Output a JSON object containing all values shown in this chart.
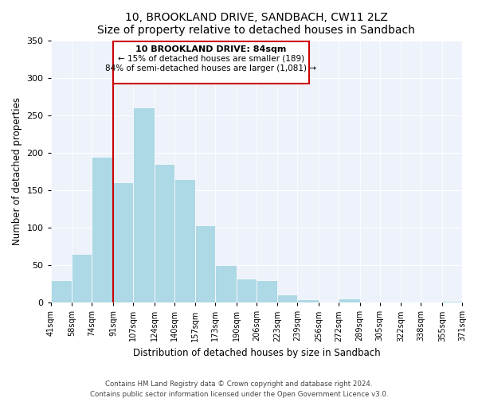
{
  "title": "10, BROOKLAND DRIVE, SANDBACH, CW11 2LZ",
  "subtitle": "Size of property relative to detached houses in Sandbach",
  "xlabel": "Distribution of detached houses by size in Sandbach",
  "ylabel": "Number of detached properties",
  "bar_color": "#add8e6",
  "highlight_color": "#cc0000",
  "bins": [
    41,
    58,
    74,
    91,
    107,
    124,
    140,
    157,
    173,
    190,
    206,
    223,
    239,
    256,
    272,
    289,
    305,
    322,
    338,
    355,
    371
  ],
  "counts": [
    30,
    65,
    195,
    160,
    260,
    185,
    165,
    103,
    50,
    32,
    30,
    11,
    4,
    0,
    5,
    0,
    0,
    1,
    0,
    2
  ],
  "tick_labels": [
    "41sqm",
    "58sqm",
    "74sqm",
    "91sqm",
    "107sqm",
    "124sqm",
    "140sqm",
    "157sqm",
    "173sqm",
    "190sqm",
    "206sqm",
    "223sqm",
    "239sqm",
    "256sqm",
    "272sqm",
    "289sqm",
    "305sqm",
    "322sqm",
    "338sqm",
    "355sqm",
    "371sqm"
  ],
  "ylim": [
    0,
    350
  ],
  "yticks": [
    0,
    50,
    100,
    150,
    200,
    250,
    300,
    350
  ],
  "annotation_title": "10 BROOKLAND DRIVE: 84sqm",
  "annotation_line1": "← 15% of detached houses are smaller (189)",
  "annotation_line2": "84% of semi-detached houses are larger (1,081) →",
  "vline_x_index": 3,
  "footer_line1": "Contains HM Land Registry data © Crown copyright and database right 2024.",
  "footer_line2": "Contains public sector information licensed under the Open Government Licence v3.0.",
  "background_color": "#eef2fb"
}
